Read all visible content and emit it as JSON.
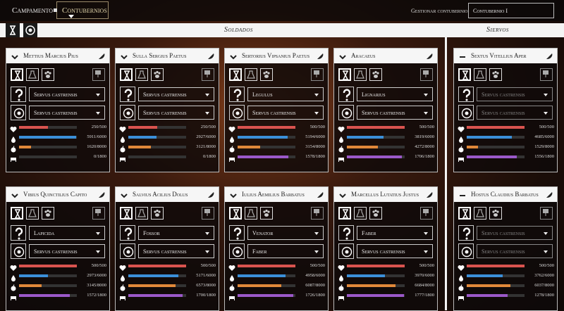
{
  "nav": {
    "tabs": [
      "Campamento",
      "Contubernios"
    ],
    "manage_label": "Gestionar contubernio",
    "selected": "Contubernio I"
  },
  "sections": [
    {
      "title": "Soldados",
      "cards": [
        {
          "name": "Mettius Marcius Pius",
          "role1": "Servus castrensis",
          "role2": "Servus castrensis",
          "stats": [
            {
              "label": "250/500",
              "value": 250,
              "max": 500
            },
            {
              "label": "5911/6000",
              "value": 5911,
              "max": 6000
            },
            {
              "label": "1620/8000",
              "value": 1620,
              "max": 8000
            },
            {
              "label": "0/1800",
              "value": 0,
              "max": 1800
            }
          ]
        },
        {
          "name": "Sulla Sergius Paetus",
          "role1": "Servus castrensis",
          "role2": "Servus castrensis",
          "stats": [
            {
              "label": "250/500",
              "value": 250,
              "max": 500
            },
            {
              "label": "2927/6000",
              "value": 2927,
              "max": 6000
            },
            {
              "label": "3121/8000",
              "value": 3121,
              "max": 8000
            },
            {
              "label": "0/1800",
              "value": 0,
              "max": 1800
            }
          ]
        },
        {
          "name": "Sertorius Vipsanius Paetus",
          "role1": "Legulus",
          "role2": "Servus castrensis",
          "stats": [
            {
              "label": "500/500",
              "value": 500,
              "max": 500
            },
            {
              "label": "5194/6000",
              "value": 5194,
              "max": 6000
            },
            {
              "label": "3154/8000",
              "value": 3154,
              "max": 8000
            },
            {
              "label": "1578/1800",
              "value": 1578,
              "max": 1800
            }
          ]
        },
        {
          "name": "Aracaeus",
          "role1": "Lignarius",
          "role2": "Servus castrensis",
          "stats": [
            {
              "label": "500/500",
              "value": 500,
              "max": 500
            },
            {
              "label": "3819/6000",
              "value": 3819,
              "max": 6000
            },
            {
              "label": "4272/8000",
              "value": 4272,
              "max": 8000
            },
            {
              "label": "1706/1800",
              "value": 1706,
              "max": 1800
            }
          ]
        },
        {
          "name": "Vibius Quinctilius Capito",
          "role1": "Lapicida",
          "role2": "Servus castrensis",
          "stats": [
            {
              "label": "500/500",
              "value": 500,
              "max": 500
            },
            {
              "label": "2973/6000",
              "value": 2973,
              "max": 6000
            },
            {
              "label": "3145/8000",
              "value": 3145,
              "max": 8000
            },
            {
              "label": "1572/1800",
              "value": 1572,
              "max": 1800
            }
          ]
        },
        {
          "name": "Salvius Acilius Dolus",
          "role1": "Fossor",
          "role2": "Servus castrensis",
          "stats": [
            {
              "label": "500/500",
              "value": 500,
              "max": 500
            },
            {
              "label": "5171/6000",
              "value": 5171,
              "max": 6000
            },
            {
              "label": "6573/8000",
              "value": 6573,
              "max": 8000
            },
            {
              "label": "1700/1800",
              "value": 1700,
              "max": 1800
            }
          ]
        },
        {
          "name": "Iulius Aemilius Barbatus",
          "role1": "Venator",
          "role2": "Faber",
          "stats": [
            {
              "label": "500/500",
              "value": 500,
              "max": 500
            },
            {
              "label": "4958/6000",
              "value": 4958,
              "max": 6000
            },
            {
              "label": "6087/8000",
              "value": 6087,
              "max": 8000
            },
            {
              "label": "1726/1800",
              "value": 1726,
              "max": 1800
            }
          ]
        },
        {
          "name": "Marcellus Lutatius Justus",
          "role1": "Faber",
          "role2": "Servus castrensis",
          "stats": [
            {
              "label": "500/500",
              "value": 500,
              "max": 500
            },
            {
              "label": "3970/6000",
              "value": 3970,
              "max": 6000
            },
            {
              "label": "6684/8000",
              "value": 6684,
              "max": 8000
            },
            {
              "label": "1777/1800",
              "value": 1777,
              "max": 1800
            }
          ]
        }
      ]
    },
    {
      "title": "Siervos",
      "cards": [
        {
          "name": "Sextus Vitellius Aper",
          "role1": "Servus castrensis",
          "role2": "Servus castrensis",
          "stats": [
            {
              "label": "500/500",
              "value": 500,
              "max": 500
            },
            {
              "label": "4685/6000",
              "value": 4685,
              "max": 6000
            },
            {
              "label": "1529/8000",
              "value": 1529,
              "max": 8000
            },
            {
              "label": "1556/1800",
              "value": 1556,
              "max": 1800
            }
          ]
        },
        {
          "name": "Hostus Claudius Barbatus",
          "role1": "Servus castrensis",
          "role2": "Servus castrensis",
          "stats": [
            {
              "label": "500/500",
              "value": 500,
              "max": 500
            },
            {
              "label": "3762/6000",
              "value": 3762,
              "max": 6000
            },
            {
              "label": "6037/8000",
              "value": 6037,
              "max": 8000
            },
            {
              "label": "1278/1800",
              "value": 1278,
              "max": 1800
            }
          ]
        }
      ]
    }
  ]
}
